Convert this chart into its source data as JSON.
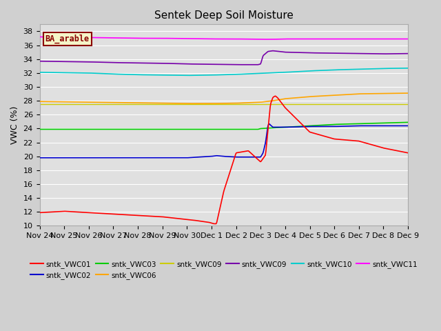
{
  "title": "Sentek Deep Soil Moisture",
  "ylabel": "VWC (%)",
  "ylim": [
    10,
    39
  ],
  "yticks": [
    10,
    12,
    14,
    16,
    18,
    20,
    22,
    24,
    26,
    28,
    30,
    32,
    34,
    36,
    38
  ],
  "fig_bg": "#d0d0d0",
  "plot_bg": "#e0e0e0",
  "annotation_text": "BA_arable",
  "annotation_bg": "#f5f5c8",
  "annotation_border": "#8b0000",
  "annotation_text_color": "#8b0000",
  "x_tick_labels": [
    "Nov 24",
    "Nov 25",
    "Nov 26",
    "Nov 27",
    "Nov 28",
    "Nov 29",
    "Nov 30",
    "Dec 1",
    "Dec 2",
    "Dec 3",
    "Dec 4",
    "Dec 5",
    "Dec 6",
    "Dec 7",
    "Dec 8",
    "Dec 9"
  ],
  "legend_row1": [
    {
      "label": "sntk_VWC01",
      "color": "#ff0000"
    },
    {
      "label": "sntk_VWC02",
      "color": "#0000cc"
    },
    {
      "label": "sntk_VWC03",
      "color": "#00cc00"
    },
    {
      "label": "sntk_VWC06",
      "color": "#ffa500"
    },
    {
      "label": "sntk_VWC09",
      "color": "#cccc00"
    },
    {
      "label": "sntk_VWC09",
      "color": "#7700aa"
    }
  ],
  "legend_row2": [
    {
      "label": "sntk_VWC10",
      "color": "#00cccc"
    },
    {
      "label": "sntk_VWC11",
      "color": "#ff00ff"
    }
  ],
  "line_colors": {
    "vwc01": "#ff0000",
    "vwc02": "#0000cc",
    "vwc03": "#00cc00",
    "vwc06": "#ffa500",
    "vwc09y": "#cccc00",
    "vwc09p": "#7700aa",
    "vwc10": "#00cccc",
    "vwc11": "#ff00ff"
  }
}
